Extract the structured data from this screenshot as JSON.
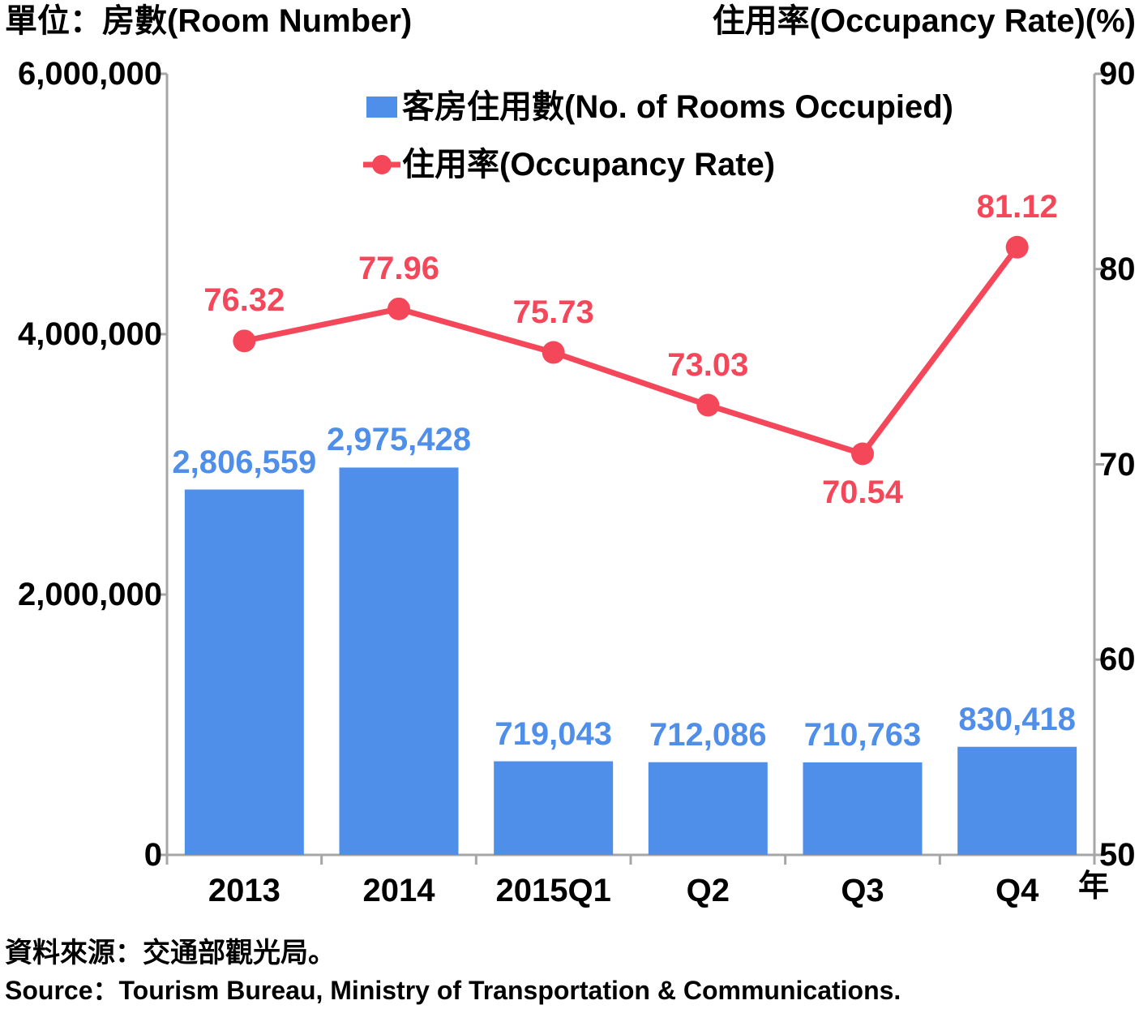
{
  "left_unit_label": "單位：房數(Room Number)",
  "right_unit_label": "住用率(Occupancy Rate)(%)",
  "x_unit_label": "年",
  "source_zh": "資料來源：交通部觀光局。",
  "source_en": "Source：Tourism Bureau, Ministry of Transportation & Communications.",
  "colors": {
    "bar": "#4f8fea",
    "line": "#f5475a",
    "axis": "#a6a6a6"
  },
  "chart_data": {
    "type": "bar+line",
    "categories": [
      "2013",
      "2014",
      "2015Q1",
      "Q2",
      "Q3",
      "Q4"
    ],
    "series": [
      {
        "name": "客房住用數(No. of Rooms Occupied)",
        "type": "bar",
        "axis": "left",
        "values": [
          2806559,
          2975428,
          719043,
          712086,
          710763,
          830418
        ],
        "labels": [
          "2,806,559",
          "2,975,428",
          "719,043",
          "712,086",
          "710,763",
          "830,418"
        ]
      },
      {
        "name": "住用率(Occupancy Rate)",
        "type": "line",
        "axis": "right",
        "values": [
          76.32,
          77.96,
          75.73,
          73.03,
          70.54,
          81.12
        ],
        "labels": [
          "76.32",
          "77.96",
          "75.73",
          "73.03",
          "70.54",
          "81.12"
        ]
      }
    ],
    "y_left": {
      "ylim": [
        0,
        6000000
      ],
      "ticks": [
        "0",
        "2,000,000",
        "4,000,000",
        "6,000,000"
      ],
      "tick_values": [
        0,
        2000000,
        4000000,
        6000000
      ]
    },
    "y_right": {
      "ylim": [
        50,
        90
      ],
      "ticks": [
        "50",
        "60",
        "70",
        "80",
        "90"
      ],
      "tick_values": [
        50,
        60,
        70,
        80,
        90
      ]
    },
    "legend_position": "top-center",
    "grid": false
  }
}
